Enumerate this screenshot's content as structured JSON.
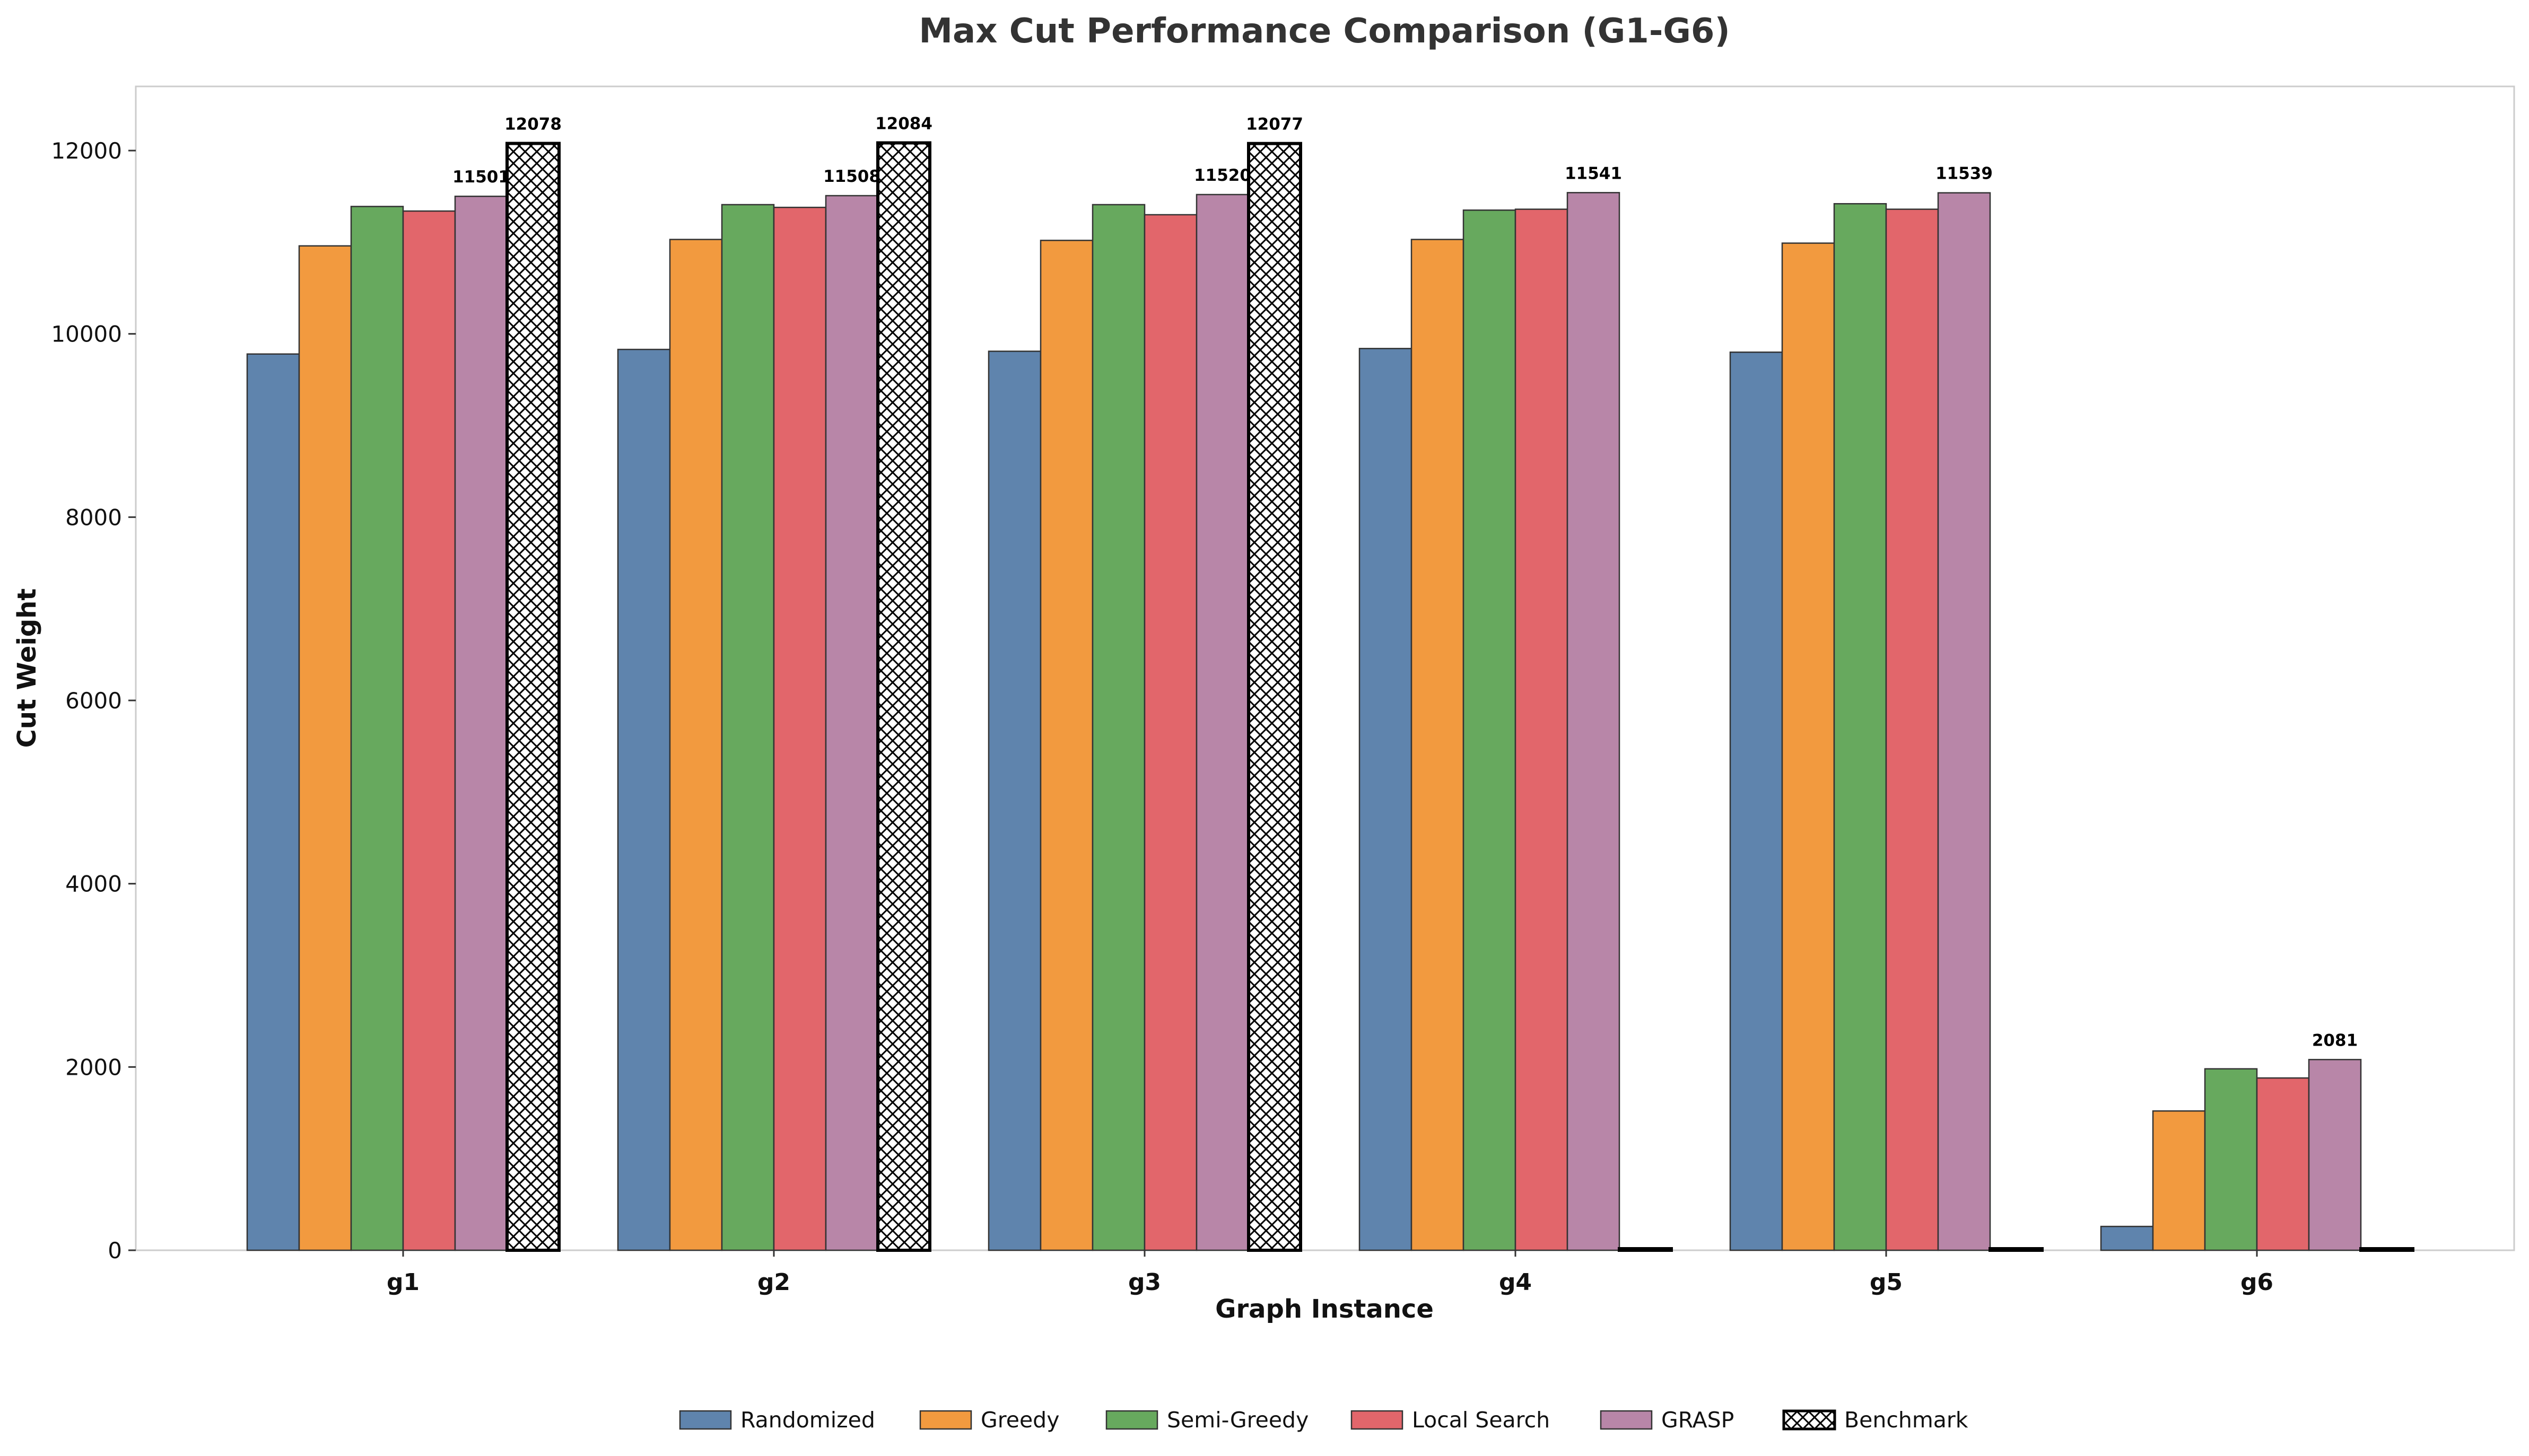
{
  "chart_data": {
    "type": "bar",
    "title": "Max Cut Performance Comparison (G1-G6)",
    "xlabel": "Graph Instance",
    "ylabel": "Cut Weight",
    "ylim": [
      0,
      12700
    ],
    "yticks": [
      0,
      2000,
      4000,
      6000,
      8000,
      10000,
      12000
    ],
    "grid": false,
    "legend_position": "bottom-center",
    "categories": [
      "g1",
      "g2",
      "g3",
      "g4",
      "g5",
      "g6"
    ],
    "series": [
      {
        "name": "Randomized",
        "color": "#5f84ad",
        "hatch": false,
        "values": [
          9780,
          9830,
          9810,
          9840,
          9800,
          260
        ]
      },
      {
        "name": "Greedy",
        "color": "#f29a3f",
        "hatch": false,
        "values": [
          10960,
          11030,
          11020,
          11030,
          10990,
          1520
        ]
      },
      {
        "name": "Semi-Greedy",
        "color": "#67a95e",
        "hatch": false,
        "values": [
          11390,
          11410,
          11410,
          11350,
          11420,
          1980
        ]
      },
      {
        "name": "Local Search",
        "color": "#e2666b",
        "hatch": false,
        "values": [
          11340,
          11380,
          11300,
          11360,
          11360,
          1880
        ]
      },
      {
        "name": "GRASP",
        "color": "#b886a8",
        "hatch": false,
        "values": [
          11501,
          11508,
          11520,
          11541,
          11539,
          2081
        ]
      },
      {
        "name": "Benchmark",
        "color": "#ffffff",
        "hatch": true,
        "values": [
          12078,
          12084,
          12077,
          0,
          0,
          0
        ]
      }
    ],
    "data_labels": [
      {
        "category": "g1",
        "series": "GRASP",
        "text": "11501"
      },
      {
        "category": "g1",
        "series": "Benchmark",
        "text": "12078"
      },
      {
        "category": "g2",
        "series": "GRASP",
        "text": "11508"
      },
      {
        "category": "g2",
        "series": "Benchmark",
        "text": "12084"
      },
      {
        "category": "g3",
        "series": "GRASP",
        "text": "11520"
      },
      {
        "category": "g3",
        "series": "Benchmark",
        "text": "12077"
      },
      {
        "category": "g4",
        "series": "GRASP",
        "text": "11541"
      },
      {
        "category": "g5",
        "series": "GRASP",
        "text": "11539"
      },
      {
        "category": "g6",
        "series": "GRASP",
        "text": "2081"
      }
    ]
  }
}
